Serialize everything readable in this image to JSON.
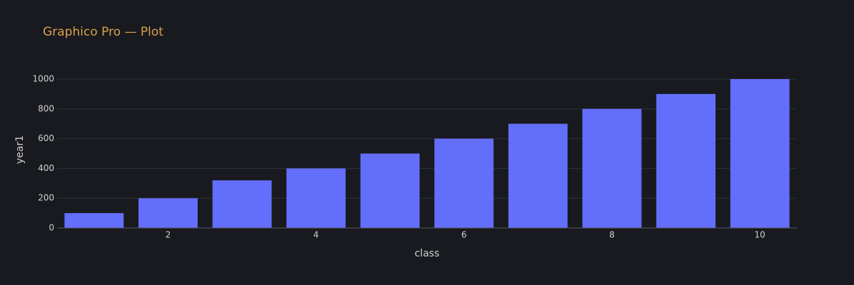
{
  "chart_data": {
    "type": "bar",
    "title": "Graphico Pro — Plot",
    "xlabel": "class",
    "ylabel": "year1",
    "x": [
      1,
      2,
      3,
      4,
      5,
      6,
      7,
      8,
      9,
      10
    ],
    "values": [
      100,
      200,
      320,
      400,
      500,
      600,
      700,
      800,
      900,
      1000
    ],
    "color": "#636efa",
    "xlim": [
      0.5,
      10.5
    ],
    "xticks": [
      2,
      4,
      6,
      8,
      10
    ],
    "ylim": [
      0,
      1052.6
    ],
    "yticks": [
      0,
      200,
      400,
      600,
      800,
      1000
    ],
    "grid": true
  }
}
